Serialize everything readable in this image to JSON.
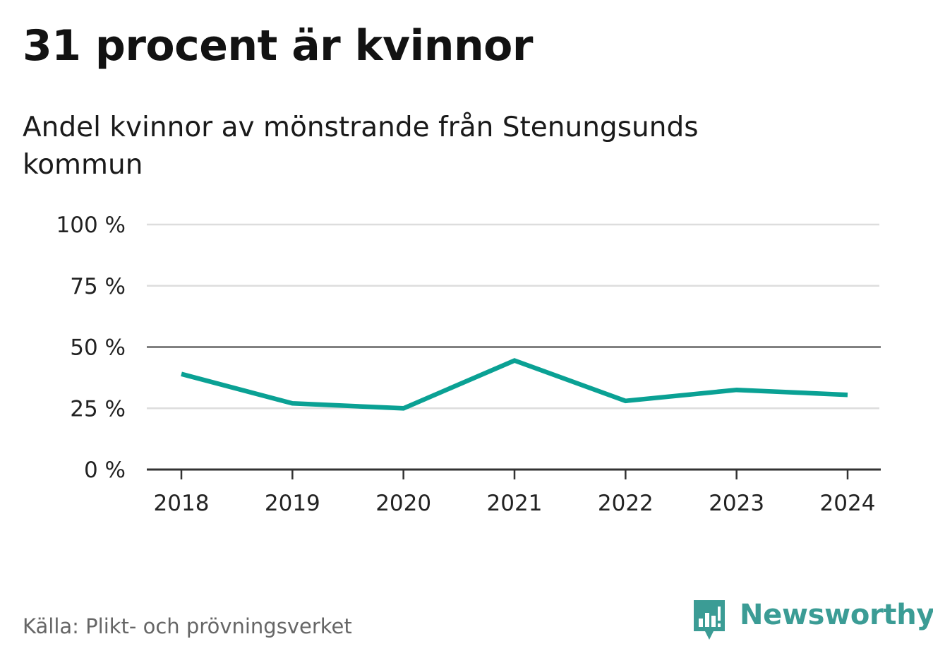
{
  "title": "31 procent är kvinnor",
  "subtitle": "Andel kvinnor av mönstrande från Stenungsunds kommun",
  "source": "Källa: Plikt- och prövningsverket",
  "brand": {
    "name": "Newsworthy",
    "icon": "newsworthy-logo-icon",
    "color": "#3b9c95"
  },
  "colors": {
    "line": "#0aa194",
    "grid": "#dddddd",
    "reference": "#666666",
    "axis": "#333333",
    "tick_text": "#222222"
  },
  "chart_data": {
    "type": "line",
    "title": "31 procent är kvinnor",
    "subtitle": "Andel kvinnor av mönstrande från Stenungsunds kommun",
    "x": [
      "2018",
      "2019",
      "2020",
      "2021",
      "2022",
      "2023",
      "2024"
    ],
    "series": [
      {
        "name": "Andel kvinnor",
        "values": [
          39,
          27,
          25,
          44.5,
          28,
          32.5,
          30.5
        ]
      }
    ],
    "ylim": [
      0,
      100
    ],
    "yticks": [
      0,
      25,
      50,
      75,
      100
    ],
    "ytick_labels": [
      "0 %",
      "25 %",
      "50 %",
      "75 %",
      "100 %"
    ],
    "reference_line": 50,
    "grid": true,
    "xlabel": "",
    "ylabel": ""
  }
}
